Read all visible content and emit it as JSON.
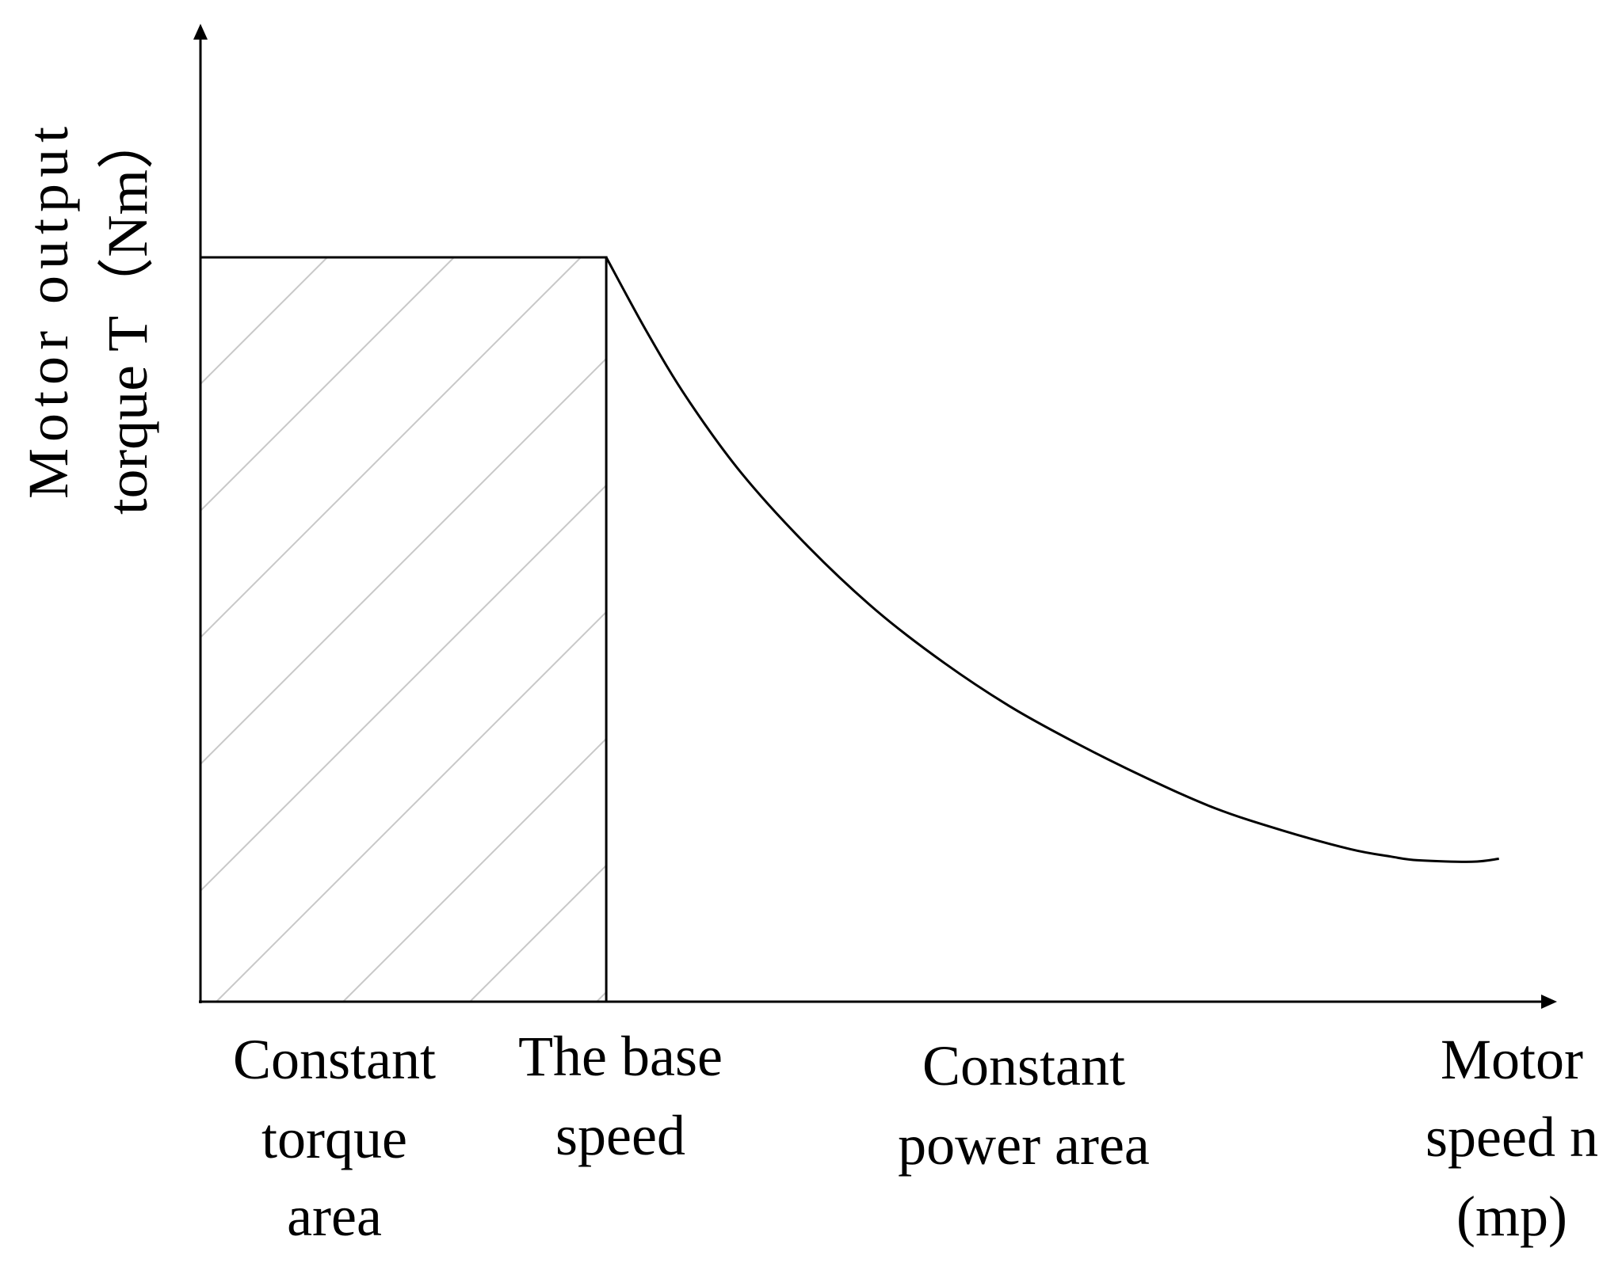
{
  "chart_data": {
    "type": "line",
    "title": "",
    "ylabel_lines": [
      "Motor output",
      "torque T（Nm）"
    ],
    "xlabel_lines": [
      "Motor",
      "speed n",
      "(mp)"
    ],
    "region_labels": [
      {
        "name": "constant-torque",
        "lines": [
          "Constant",
          "torque",
          "area"
        ]
      },
      {
        "name": "base-speed",
        "lines": [
          "The base",
          "speed"
        ]
      },
      {
        "name": "constant-power",
        "lines": [
          "Constant",
          "power area"
        ]
      }
    ],
    "xlim": [
      0,
      1
    ],
    "ylim": [
      0,
      1
    ],
    "base_speed": 0.3,
    "max_torque": 1.0,
    "curve": {
      "x": [
        0.0,
        0.3,
        0.33,
        0.36,
        0.4,
        0.45,
        0.5,
        0.55,
        0.6,
        0.65,
        0.7,
        0.75,
        0.8,
        0.85,
        0.88,
        0.9,
        0.94,
        0.96
      ],
      "y": [
        1.0,
        1.0,
        0.9,
        0.81,
        0.71,
        0.61,
        0.525,
        0.455,
        0.395,
        0.345,
        0.3,
        0.26,
        0.23,
        0.205,
        0.195,
        0.19,
        0.188,
        0.192
      ]
    },
    "shaded_region": {
      "x_from": 0.0,
      "x_to": 0.3,
      "pattern": "diagonal-hatch"
    },
    "ticks": "none",
    "grid": false,
    "line_color": "#000000",
    "hatch_color": "#c8c8c8"
  }
}
